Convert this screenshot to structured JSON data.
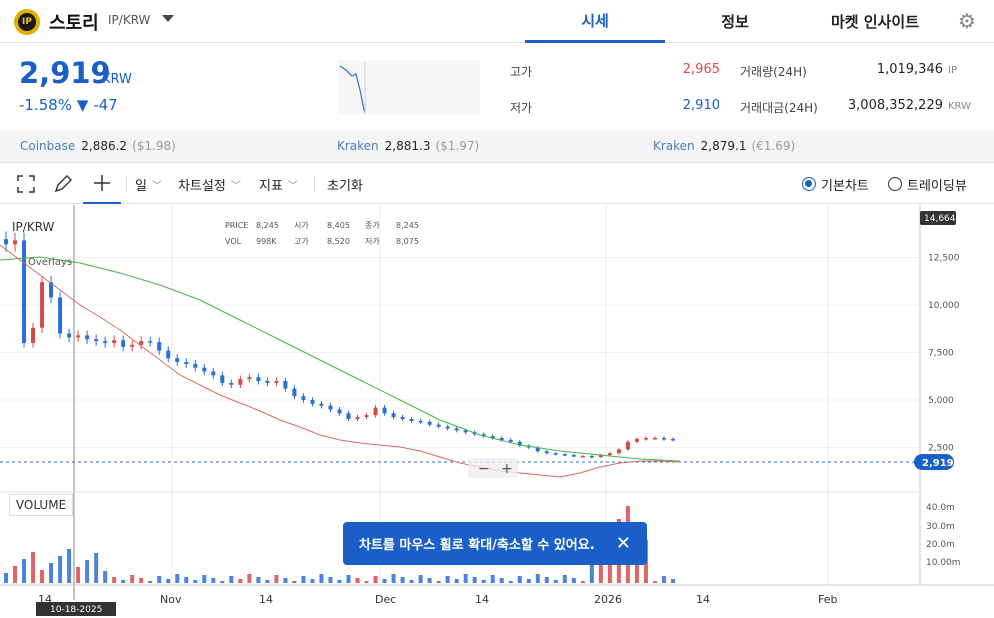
{
  "header": {
    "coin_icon_text": "IP",
    "coin_name": "스토리",
    "pair": "IP/KRW",
    "tabs": [
      {
        "label": "시세",
        "active": true
      },
      {
        "label": "정보",
        "active": false
      },
      {
        "label": "마켓 인사이트",
        "active": false
      }
    ]
  },
  "price": {
    "current": "2,919",
    "unit": "KRW",
    "change_pct": "-1.58%",
    "change_arrow": "▼",
    "change_abs": "-47"
  },
  "stats": {
    "high_label": "고가",
    "high": "2,965",
    "low_label": "저가",
    "low": "2,910",
    "vol_label": "거래량(24H)",
    "vol": "1,019,346",
    "vol_unit": "IP",
    "amt_label": "거래대금(24H)",
    "amt": "3,008,352,229",
    "amt_unit": "KRW"
  },
  "exchanges": [
    {
      "name": "Coinbase",
      "price": "2,886.2",
      "usd": "($1.98)"
    },
    {
      "name": "Kraken",
      "price": "2,881.3",
      "usd": "($1.97)"
    },
    {
      "name": "Kraken",
      "price": "2,879.1",
      "usd": "(€1.69)"
    }
  ],
  "toolbar": {
    "interval": "일",
    "chart_settings": "차트설정",
    "indicators": "지표",
    "reset": "초기화",
    "basic_chart": "기본차트",
    "tradingview": "트레이딩뷰"
  },
  "chart": {
    "pair_label": "IP/KRW",
    "overlays": "Overlays",
    "ohlc": {
      "price_label": "PRICE",
      "price": "8,245",
      "open_label": "시가",
      "open": "8,405",
      "close_label": "종가",
      "close": "8,245",
      "vol_label": "VOL",
      "vol": "998K",
      "high_label": "고가",
      "high": "8,520",
      "low_label": "저가",
      "low": "8,075"
    },
    "volume_label": "VOLUME",
    "crosshair_date": "10-18-2025",
    "last_price_tag": "2,919",
    "top_price_tag": "14,664",
    "toast": "차트를 마우스 휠로 확대/축소할 수 있어요."
  },
  "chart_data": {
    "type": "candlestick",
    "y_ticks": [
      "12,500",
      "10,000",
      "7,500",
      "5,000",
      "2,500"
    ],
    "volume_ticks": [
      "40.0m",
      "30.0m",
      "20.0m",
      "10.00m"
    ],
    "x_ticks": [
      "14",
      "Nov",
      "14",
      "Dec",
      "14",
      "2026",
      "14",
      "Feb"
    ],
    "ylim": [
      0,
      15000
    ],
    "close_series": [
      13200,
      13400,
      8000,
      8800,
      11200,
      10400,
      8500,
      8300,
      8400,
      8200,
      8100,
      8000,
      8150,
      7800,
      7900,
      8100,
      8050,
      7600,
      7200,
      7000,
      6900,
      6700,
      6500,
      6300,
      5900,
      5800,
      6100,
      6200,
      6000,
      5900,
      6000,
      5600,
      5200,
      5000,
      4800,
      4700,
      4500,
      4300,
      4000,
      4100,
      4200,
      4600,
      4300,
      4100,
      4000,
      3900,
      3850,
      3700,
      3600,
      3500,
      3400,
      3300,
      3200,
      3100,
      3000,
      2900,
      2800,
      2600,
      2500,
      2300,
      2200,
      2150,
      2100,
      2050,
      2050,
      2000,
      2100,
      2200,
      2400,
      2800,
      2950,
      3000,
      3000,
      2950,
      2919
    ]
  },
  "colors": {
    "accent": "#1a5fc8",
    "up": "#d84a4a",
    "down": "#2a6fd6",
    "ma_short": "#e06a5a",
    "ma_long": "#44b644"
  }
}
